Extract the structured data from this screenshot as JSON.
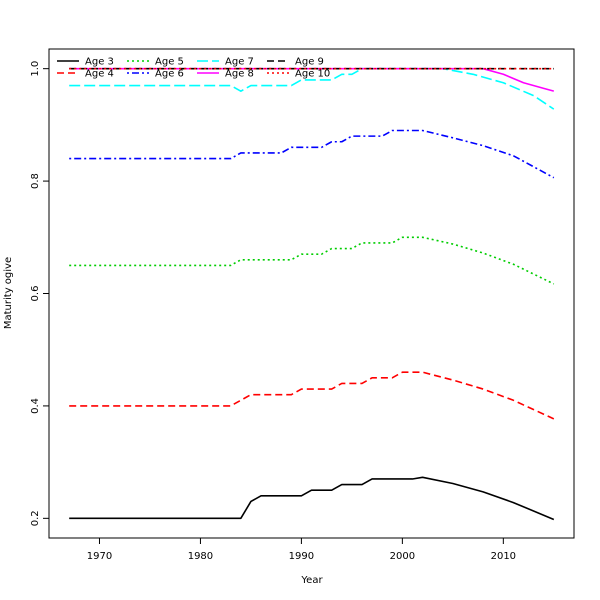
{
  "chart_data": {
    "type": "line",
    "title": "",
    "xlabel": "Year",
    "ylabel": "Maturity ogive",
    "xlim": [
      1965,
      2017
    ],
    "ylim": [
      0.165,
      1.035
    ],
    "x_ticks": [
      1970,
      1980,
      1990,
      2000,
      2010
    ],
    "y_ticks": [
      0.2,
      0.4,
      0.6,
      0.8,
      1.0
    ],
    "x_tick_labels": [
      "1970",
      "1980",
      "1990",
      "2000",
      "2010"
    ],
    "y_tick_labels": [
      "0.2",
      "0.4",
      "0.6",
      "0.8",
      "1.0"
    ],
    "grid": false,
    "legend_position": "top-left",
    "series": [
      {
        "name": "Age 3",
        "color": "#000000",
        "dash": "solid",
        "points": [
          [
            1967,
            0.2
          ],
          [
            1984,
            0.2
          ],
          [
            1985,
            0.23
          ],
          [
            1986,
            0.24
          ],
          [
            1990,
            0.24
          ],
          [
            1991,
            0.25
          ],
          [
            1993,
            0.25
          ],
          [
            1994,
            0.26
          ],
          [
            1996,
            0.26
          ],
          [
            1997,
            0.27
          ],
          [
            2001,
            0.27
          ],
          [
            2002,
            0.273
          ],
          [
            2005,
            0.262
          ],
          [
            2008,
            0.247
          ],
          [
            2011,
            0.228
          ],
          [
            2015,
            0.198
          ]
        ]
      },
      {
        "name": "Age 4",
        "color": "#ff0000",
        "dash": "dashed",
        "points": [
          [
            1967,
            0.4
          ],
          [
            1983,
            0.4
          ],
          [
            1985,
            0.42
          ],
          [
            1989,
            0.42
          ],
          [
            1990,
            0.43
          ],
          [
            1993,
            0.43
          ],
          [
            1994,
            0.44
          ],
          [
            1996,
            0.44
          ],
          [
            1997,
            0.45
          ],
          [
            1999,
            0.45
          ],
          [
            2000,
            0.46
          ],
          [
            2002,
            0.46
          ],
          [
            2005,
            0.446
          ],
          [
            2008,
            0.43
          ],
          [
            2011,
            0.41
          ],
          [
            2015,
            0.377
          ]
        ]
      },
      {
        "name": "Age 5",
        "color": "#00cd00",
        "dash": "dotted",
        "points": [
          [
            1967,
            0.65
          ],
          [
            1983,
            0.65
          ],
          [
            1984,
            0.66
          ],
          [
            1989,
            0.66
          ],
          [
            1990,
            0.67
          ],
          [
            1992,
            0.67
          ],
          [
            1993,
            0.68
          ],
          [
            1995,
            0.68
          ],
          [
            1996,
            0.69
          ],
          [
            1999,
            0.69
          ],
          [
            2000,
            0.7
          ],
          [
            2002,
            0.7
          ],
          [
            2005,
            0.688
          ],
          [
            2008,
            0.672
          ],
          [
            2011,
            0.652
          ],
          [
            2015,
            0.617
          ]
        ]
      },
      {
        "name": "Age 6",
        "color": "#0000ff",
        "dash": "dotdash",
        "points": [
          [
            1967,
            0.84
          ],
          [
            1983,
            0.84
          ],
          [
            1984,
            0.85
          ],
          [
            1988,
            0.85
          ],
          [
            1989,
            0.86
          ],
          [
            1992,
            0.86
          ],
          [
            1993,
            0.87
          ],
          [
            1994,
            0.87
          ],
          [
            1995,
            0.88
          ],
          [
            1998,
            0.88
          ],
          [
            1999,
            0.89
          ],
          [
            2002,
            0.89
          ],
          [
            2005,
            0.877
          ],
          [
            2008,
            0.863
          ],
          [
            2011,
            0.845
          ],
          [
            2015,
            0.806
          ]
        ]
      },
      {
        "name": "Age 7",
        "color": "#00ffff",
        "dash": "longdash",
        "points": [
          [
            1967,
            0.97
          ],
          [
            1983,
            0.97
          ],
          [
            1984,
            0.96
          ],
          [
            1985,
            0.97
          ],
          [
            1989,
            0.97
          ],
          [
            1990,
            0.98
          ],
          [
            1993,
            0.98
          ],
          [
            1994,
            0.99
          ],
          [
            1995,
            0.99
          ],
          [
            1996,
            1.0
          ],
          [
            2004,
            1.0
          ],
          [
            2007,
            0.99
          ],
          [
            2010,
            0.975
          ],
          [
            2013,
            0.952
          ],
          [
            2015,
            0.928
          ]
        ]
      },
      {
        "name": "Age 8",
        "color": "#ff00ff",
        "dash": "solid",
        "points": [
          [
            1967,
            1.0
          ],
          [
            2008,
            1.0
          ],
          [
            2010,
            0.99
          ],
          [
            2012,
            0.975
          ],
          [
            2014,
            0.965
          ],
          [
            2015,
            0.96
          ]
        ]
      },
      {
        "name": "Age 9",
        "color": "#000000",
        "dash": "dashed",
        "points": [
          [
            1967,
            1.0
          ],
          [
            2015,
            1.0
          ]
        ]
      },
      {
        "name": "Age 10",
        "color": "#ff0000",
        "dash": "dotted",
        "points": [
          [
            1967,
            1.0
          ],
          [
            2015,
            1.0
          ]
        ]
      }
    ]
  }
}
